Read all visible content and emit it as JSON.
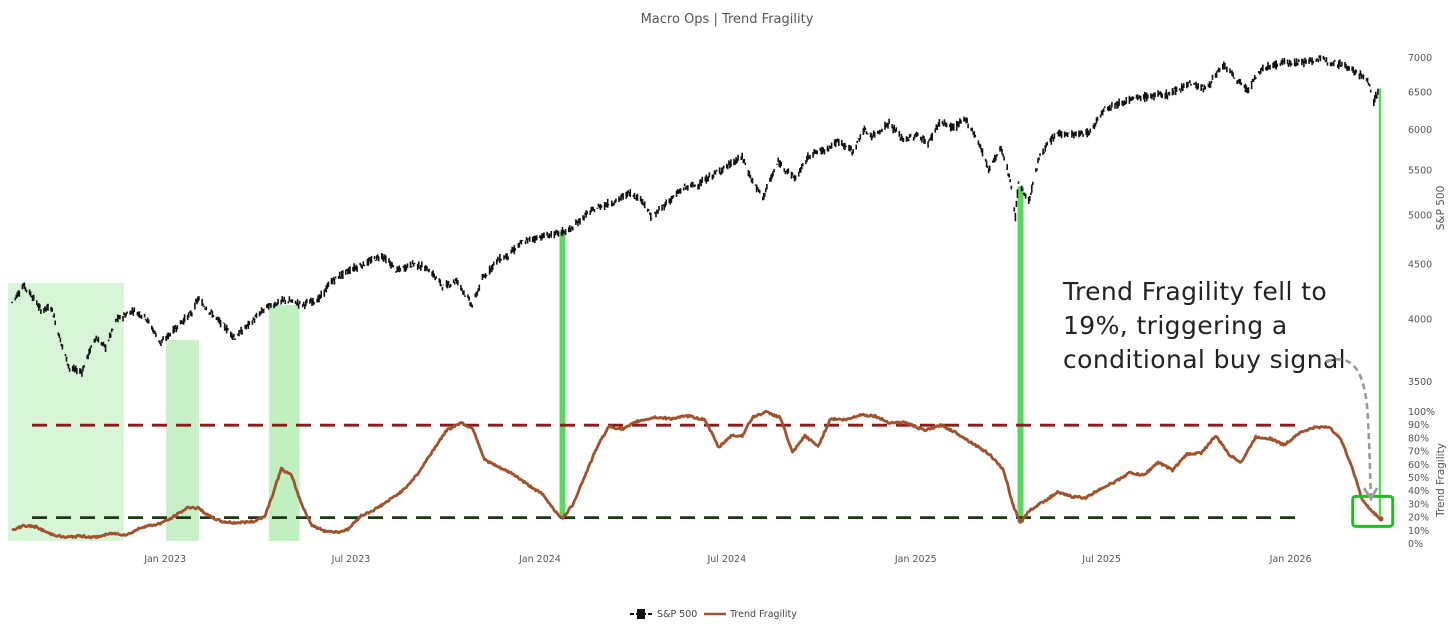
{
  "chart_data": {
    "type": "line",
    "title": "Macro Ops | Trend Fragility",
    "x_range": [
      "2022-08-01",
      "2026-04-01"
    ],
    "x_ticks": [
      {
        "date": "2023-01-01",
        "label": "Jan 2023"
      },
      {
        "date": "2023-07-01",
        "label": "Jul 2023"
      },
      {
        "date": "2024-01-01",
        "label": "Jan 2024"
      },
      {
        "date": "2024-07-01",
        "label": "Jul 2024"
      },
      {
        "date": "2025-01-01",
        "label": "Jan 2025"
      },
      {
        "date": "2025-07-01",
        "label": "Jul 2025"
      },
      {
        "date": "2026-01-01",
        "label": "Jan 2026"
      }
    ],
    "y_axis_right_top": {
      "label": "S&P 500",
      "range": [
        3500,
        7000
      ],
      "ticks": [
        "3500",
        "4000",
        "4500",
        "5000",
        "5500",
        "6000",
        "6500",
        "7000"
      ]
    },
    "y_axis_right_bottom": {
      "label": "Trend Fragility",
      "range": [
        0,
        100
      ],
      "ticks": [
        "0%",
        "10%",
        "20%",
        "30%",
        "40%",
        "50%",
        "60%",
        "70%",
        "80%",
        "90%",
        "100%"
      ]
    },
    "series": [
      {
        "name": "S&P 500",
        "color": "#111111",
        "points": [
          [
            "2022-08-05",
            4150
          ],
          [
            "2022-08-16",
            4305
          ],
          [
            "2022-08-25",
            4200
          ],
          [
            "2022-09-02",
            4080
          ],
          [
            "2022-09-12",
            4110
          ],
          [
            "2022-09-22",
            3800
          ],
          [
            "2022-09-30",
            3600
          ],
          [
            "2022-10-12",
            3580
          ],
          [
            "2022-10-25",
            3850
          ],
          [
            "2022-11-04",
            3770
          ],
          [
            "2022-11-15",
            4000
          ],
          [
            "2022-12-01",
            4080
          ],
          [
            "2022-12-13",
            4020
          ],
          [
            "2022-12-28",
            3800
          ],
          [
            "2023-01-10",
            3920
          ],
          [
            "2023-01-27",
            4060
          ],
          [
            "2023-02-02",
            4180
          ],
          [
            "2023-02-22",
            3990
          ],
          [
            "2023-03-10",
            3850
          ],
          [
            "2023-03-25",
            3970
          ],
          [
            "2023-04-10",
            4110
          ],
          [
            "2023-04-28",
            4170
          ],
          [
            "2023-05-15",
            4130
          ],
          [
            "2023-05-31",
            4180
          ],
          [
            "2023-06-12",
            4340
          ],
          [
            "2023-06-30",
            4450
          ],
          [
            "2023-07-15",
            4510
          ],
          [
            "2023-07-31",
            4590
          ],
          [
            "2023-08-15",
            4440
          ],
          [
            "2023-08-31",
            4510
          ],
          [
            "2023-09-15",
            4450
          ],
          [
            "2023-09-29",
            4290
          ],
          [
            "2023-10-12",
            4350
          ],
          [
            "2023-10-27",
            4120
          ],
          [
            "2023-11-06",
            4360
          ],
          [
            "2023-11-20",
            4540
          ],
          [
            "2023-12-01",
            4590
          ],
          [
            "2023-12-15",
            4720
          ],
          [
            "2023-12-29",
            4770
          ],
          [
            "2024-01-15",
            4800
          ],
          [
            "2024-01-31",
            4850
          ],
          [
            "2024-02-15",
            5010
          ],
          [
            "2024-02-29",
            5100
          ],
          [
            "2024-03-15",
            5150
          ],
          [
            "2024-03-28",
            5250
          ],
          [
            "2024-04-10",
            5160
          ],
          [
            "2024-04-19",
            4970
          ],
          [
            "2024-05-03",
            5130
          ],
          [
            "2024-05-20",
            5300
          ],
          [
            "2024-06-05",
            5350
          ],
          [
            "2024-06-20",
            5470
          ],
          [
            "2024-07-16",
            5660
          ],
          [
            "2024-07-25",
            5400
          ],
          [
            "2024-08-05",
            5190
          ],
          [
            "2024-08-20",
            5600
          ],
          [
            "2024-09-06",
            5410
          ],
          [
            "2024-09-20",
            5700
          ],
          [
            "2024-10-04",
            5750
          ],
          [
            "2024-10-18",
            5860
          ],
          [
            "2024-11-01",
            5730
          ],
          [
            "2024-11-11",
            6000
          ],
          [
            "2024-11-20",
            5920
          ],
          [
            "2024-12-06",
            6090
          ],
          [
            "2024-12-20",
            5870
          ],
          [
            "2025-01-03",
            5940
          ],
          [
            "2025-01-13",
            5830
          ],
          [
            "2025-01-24",
            6100
          ],
          [
            "2025-02-07",
            6030
          ],
          [
            "2025-02-19",
            6140
          ],
          [
            "2025-03-03",
            5850
          ],
          [
            "2025-03-13",
            5520
          ],
          [
            "2025-03-25",
            5770
          ],
          [
            "2025-04-03",
            5400
          ],
          [
            "2025-04-08",
            4980
          ],
          [
            "2025-04-11",
            5360
          ],
          [
            "2025-04-21",
            5150
          ],
          [
            "2025-05-02",
            5690
          ],
          [
            "2025-05-19",
            5960
          ],
          [
            "2025-06-05",
            5940
          ],
          [
            "2025-06-20",
            5970
          ],
          [
            "2025-07-03",
            6280
          ],
          [
            "2025-07-25",
            6390
          ],
          [
            "2025-08-15",
            6450
          ],
          [
            "2025-09-05",
            6480
          ],
          [
            "2025-09-25",
            6640
          ],
          [
            "2025-10-10",
            6550
          ],
          [
            "2025-10-28",
            6890
          ],
          [
            "2025-11-07",
            6720
          ],
          [
            "2025-11-20",
            6540
          ],
          [
            "2025-12-05",
            6850
          ],
          [
            "2025-12-24",
            6930
          ],
          [
            "2026-01-15",
            6940
          ],
          [
            "2026-01-27",
            6980
          ],
          [
            "2026-02-10",
            6950
          ],
          [
            "2026-02-25",
            6880
          ],
          [
            "2026-03-10",
            6750
          ],
          [
            "2026-03-18",
            6650
          ],
          [
            "2026-03-23",
            6380
          ],
          [
            "2026-03-26",
            6480
          ],
          [
            "2026-03-29",
            6560
          ]
        ]
      },
      {
        "name": "Trend Fragility",
        "color": "#a0522d",
        "points": [
          [
            "2022-08-05",
            10
          ],
          [
            "2022-08-16",
            14
          ],
          [
            "2022-08-28",
            13
          ],
          [
            "2022-09-10",
            8
          ],
          [
            "2022-09-25",
            5
          ],
          [
            "2022-10-10",
            6
          ],
          [
            "2022-10-25",
            5
          ],
          [
            "2022-11-10",
            8
          ],
          [
            "2022-11-25",
            7
          ],
          [
            "2022-12-10",
            13
          ],
          [
            "2022-12-25",
            15
          ],
          [
            "2023-01-06",
            19
          ],
          [
            "2023-01-16",
            24
          ],
          [
            "2023-01-24",
            28
          ],
          [
            "2023-02-03",
            27
          ],
          [
            "2023-02-13",
            21
          ],
          [
            "2023-02-25",
            17
          ],
          [
            "2023-03-10",
            16
          ],
          [
            "2023-03-28",
            17
          ],
          [
            "2023-04-08",
            21
          ],
          [
            "2023-04-16",
            38
          ],
          [
            "2023-04-24",
            57
          ],
          [
            "2023-05-04",
            52
          ],
          [
            "2023-05-14",
            30
          ],
          [
            "2023-05-24",
            14
          ],
          [
            "2023-06-05",
            10
          ],
          [
            "2023-06-18",
            9
          ],
          [
            "2023-06-28",
            11
          ],
          [
            "2023-07-10",
            21
          ],
          [
            "2023-07-24",
            26
          ],
          [
            "2023-08-07",
            33
          ],
          [
            "2023-08-21",
            41
          ],
          [
            "2023-09-04",
            53
          ],
          [
            "2023-09-18",
            70
          ],
          [
            "2023-10-02",
            86
          ],
          [
            "2023-10-16",
            92
          ],
          [
            "2023-10-28",
            87
          ],
          [
            "2023-11-08",
            64
          ],
          [
            "2023-11-22",
            58
          ],
          [
            "2023-12-06",
            53
          ],
          [
            "2023-12-20",
            45
          ],
          [
            "2024-01-03",
            38
          ],
          [
            "2024-01-17",
            24
          ],
          [
            "2024-01-23",
            19
          ],
          [
            "2024-02-02",
            30
          ],
          [
            "2024-02-14",
            52
          ],
          [
            "2024-02-26",
            74
          ],
          [
            "2024-03-08",
            89
          ],
          [
            "2024-03-22",
            87
          ],
          [
            "2024-04-05",
            93
          ],
          [
            "2024-04-22",
            96
          ],
          [
            "2024-05-08",
            95
          ],
          [
            "2024-05-24",
            97
          ],
          [
            "2024-06-10",
            94
          ],
          [
            "2024-06-23",
            73
          ],
          [
            "2024-07-05",
            82
          ],
          [
            "2024-07-16",
            82
          ],
          [
            "2024-07-26",
            96
          ],
          [
            "2024-08-08",
            100
          ],
          [
            "2024-08-22",
            96
          ],
          [
            "2024-09-03",
            69
          ],
          [
            "2024-09-15",
            82
          ],
          [
            "2024-09-28",
            74
          ],
          [
            "2024-10-10",
            95
          ],
          [
            "2024-10-25",
            94
          ],
          [
            "2024-11-08",
            98
          ],
          [
            "2024-11-22",
            97
          ],
          [
            "2024-12-06",
            92
          ],
          [
            "2024-12-22",
            92
          ],
          [
            "2025-01-10",
            86
          ],
          [
            "2025-01-26",
            90
          ],
          [
            "2025-02-10",
            84
          ],
          [
            "2025-02-26",
            76
          ],
          [
            "2025-03-14",
            68
          ],
          [
            "2025-03-28",
            55
          ],
          [
            "2025-04-05",
            31
          ],
          [
            "2025-04-13",
            16
          ],
          [
            "2025-04-21",
            25
          ],
          [
            "2025-05-05",
            32
          ],
          [
            "2025-05-19",
            39
          ],
          [
            "2025-06-02",
            36
          ],
          [
            "2025-06-16",
            35
          ],
          [
            "2025-06-30",
            42
          ],
          [
            "2025-07-14",
            47
          ],
          [
            "2025-07-28",
            54
          ],
          [
            "2025-08-11",
            52
          ],
          [
            "2025-08-25",
            62
          ],
          [
            "2025-09-08",
            56
          ],
          [
            "2025-09-22",
            68
          ],
          [
            "2025-10-06",
            69
          ],
          [
            "2025-10-20",
            82
          ],
          [
            "2025-11-03",
            67
          ],
          [
            "2025-11-14",
            62
          ],
          [
            "2025-11-28",
            81
          ],
          [
            "2025-12-12",
            80
          ],
          [
            "2025-12-26",
            75
          ],
          [
            "2026-01-09",
            84
          ],
          [
            "2026-01-23",
            88
          ],
          [
            "2026-02-06",
            89
          ],
          [
            "2026-02-18",
            81
          ],
          [
            "2026-03-02",
            58
          ],
          [
            "2026-03-12",
            33
          ],
          [
            "2026-03-22",
            24
          ],
          [
            "2026-03-30",
            19
          ]
        ]
      }
    ],
    "reference_lines": [
      {
        "series": "Trend Fragility",
        "value": 90,
        "style": "dashed",
        "color": "#8b1a1a"
      },
      {
        "series": "Trend Fragility",
        "value": 20,
        "style": "dashed",
        "color": "#1e3a14"
      }
    ],
    "shaded_regions": [
      {
        "start": "2022-08-01",
        "end": "2022-11-22",
        "color": "#d8f5d8"
      },
      {
        "start": "2023-01-02",
        "end": "2023-02-03",
        "color": "#c8f0c8"
      },
      {
        "start": "2023-04-12",
        "end": "2023-05-12",
        "color": "#c0efc0"
      }
    ],
    "signal_bars": [
      {
        "date": "2024-01-23",
        "color": "#5cd65c"
      },
      {
        "date": "2025-04-13",
        "color": "#5cd65c"
      },
      {
        "date": "2026-03-29",
        "color": "#5cd65c"
      }
    ],
    "highlight_box": {
      "date": "2026-03-22",
      "color": "#22bb22"
    },
    "annotation": {
      "lines": [
        "Trend Fragility fell to",
        "19%, triggering a",
        "conditional buy signal"
      ],
      "arrow_color": "#999999"
    },
    "legend": {
      "position": "bottom-center",
      "items": [
        {
          "label": "S&P 500",
          "color": "#111111",
          "type": "candlestick"
        },
        {
          "label": "Trend Fragility",
          "color": "#a0522d",
          "type": "line"
        }
      ]
    },
    "grid": false
  }
}
